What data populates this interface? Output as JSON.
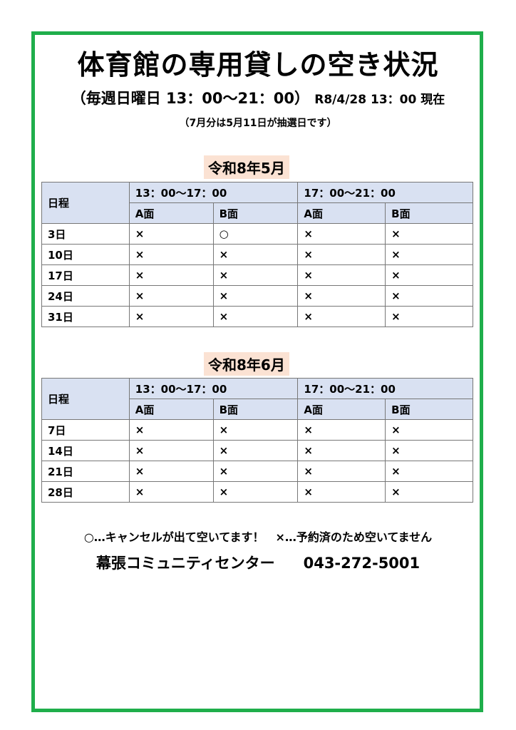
{
  "title": "体育館の専用貸しの空き状況",
  "subtitle": "（毎週日曜日 13：00～21：00）",
  "as_of": "R8/4/28 13：00 現在",
  "note": "（7月分は5月11日が抽選日です）",
  "colors": {
    "frame": "#1fae4b",
    "header_bg": "#d9e1f2",
    "month_bg": "#fbe2d3"
  },
  "header": {
    "schedule": "日程",
    "slot1": "13：00～17：00",
    "slot2": "17：00～21：00",
    "a": "A面",
    "b": "B面"
  },
  "months": [
    {
      "label": "令和8年5月",
      "rows": [
        {
          "day": "3日",
          "v": [
            "×",
            "○",
            "×",
            "×"
          ]
        },
        {
          "day": "10日",
          "v": [
            "×",
            "×",
            "×",
            "×"
          ]
        },
        {
          "day": "17日",
          "v": [
            "×",
            "×",
            "×",
            "×"
          ]
        },
        {
          "day": "24日",
          "v": [
            "×",
            "×",
            "×",
            "×"
          ]
        },
        {
          "day": "31日",
          "v": [
            "×",
            "×",
            "×",
            "×"
          ]
        }
      ]
    },
    {
      "label": "令和8年6月",
      "rows": [
        {
          "day": "7日",
          "v": [
            "×",
            "×",
            "×",
            "×"
          ]
        },
        {
          "day": "14日",
          "v": [
            "×",
            "×",
            "×",
            "×"
          ]
        },
        {
          "day": "21日",
          "v": [
            "×",
            "×",
            "×",
            "×"
          ]
        },
        {
          "day": "28日",
          "v": [
            "×",
            "×",
            "×",
            "×"
          ]
        }
      ]
    }
  ],
  "legend": "○…キャンセルが出て空いてます！　×…予約済のため空いてません",
  "center": "幕張コミュニティセンター",
  "phone": "043-272-5001"
}
